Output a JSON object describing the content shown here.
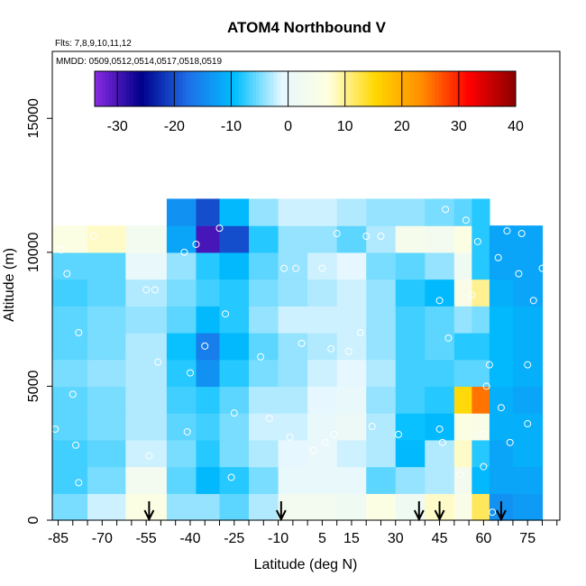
{
  "chart_data": {
    "type": "heatmap",
    "title": "ATOM4 Northbound V",
    "notes": {
      "flights": "Flts: 7,8,9,10,11,12",
      "dates": "MMDD: 0509,0512,0514,0517,0518,0519"
    },
    "xlabel": "Latitude (deg N)",
    "ylabel": "Altitude (m)",
    "xlim": [
      -87,
      86
    ],
    "ylim": [
      0,
      17500
    ],
    "x_ticks": [
      "-85",
      "-70",
      "-55",
      "-40",
      "-25",
      "-10",
      "5",
      "15",
      "30",
      "45",
      "60",
      "75"
    ],
    "y_ticks": [
      "0",
      "5000",
      "10000",
      "15000"
    ],
    "colorbar": {
      "range": [
        -34,
        40
      ],
      "ticks": [
        "-30",
        "-20",
        "-10",
        "0",
        "10",
        "20",
        "30",
        "40"
      ],
      "colors": [
        "#8a2be2",
        "#00008b",
        "#1e6fe8",
        "#00bfff",
        "#e6f7ff",
        "#ffffe0",
        "#ffd700",
        "#ff8c00",
        "#ff0000",
        "#8b0000"
      ]
    },
    "column_edges": [
      -87,
      -75,
      -62,
      -48,
      -38,
      -30,
      -20,
      -10,
      0,
      10,
      20,
      30,
      40,
      50,
      56,
      62,
      70,
      80
    ],
    "row_edges": [
      0,
      1000,
      2000,
      3000,
      4000,
      5000,
      6000,
      7000,
      8000,
      9000,
      10000,
      11000,
      12000
    ],
    "grid_values": [
      [
        -5,
        -2,
        6,
        -4,
        -4,
        -6,
        -3,
        3,
        3,
        2,
        6,
        2,
        8,
        5,
        12,
        -14,
        -13
      ],
      [
        -7,
        -5,
        3,
        -6,
        -10,
        -8,
        -5,
        0,
        0,
        0,
        -6,
        -4,
        -3,
        3,
        -10,
        -12,
        -12
      ],
      [
        -7,
        -6,
        -2,
        -5,
        -8,
        -5,
        -3,
        -1,
        0,
        -2,
        -3,
        -10,
        -3,
        8,
        -8,
        -12,
        -11
      ],
      [
        -6,
        -5,
        -3,
        -6,
        -7,
        -5,
        -2,
        -2,
        0,
        1,
        -3,
        -9,
        -10,
        6,
        5,
        -11,
        -11
      ],
      [
        -6,
        -5,
        -3,
        -7,
        -8,
        -6,
        -3,
        -3,
        -1,
        0,
        -4,
        -7,
        -8,
        15,
        25,
        -11,
        -12
      ],
      [
        -5,
        -4,
        -3,
        -8,
        -14,
        -8,
        -5,
        -4,
        -2,
        -1,
        -3,
        -7,
        -7,
        -6,
        -6,
        -10,
        -11
      ],
      [
        -6,
        -5,
        -3,
        -9,
        -16,
        -10,
        -6,
        -4,
        -3,
        -2,
        -4,
        -7,
        -6,
        -8,
        -8,
        -10,
        -11
      ],
      [
        -6,
        -5,
        -4,
        -6,
        -10,
        -8,
        -4,
        -2,
        -2,
        -2,
        -4,
        -7,
        -6,
        -4,
        -5,
        -10,
        -11
      ],
      [
        -7,
        -6,
        -3,
        -5,
        -7,
        -8,
        -5,
        -4,
        -3,
        -2,
        -4,
        -8,
        -10,
        5,
        10,
        -11,
        -12
      ],
      [
        -6,
        -6,
        0,
        -4,
        -8,
        -10,
        -6,
        -4,
        -2,
        -1,
        -5,
        -6,
        -4,
        2,
        -8,
        -12,
        -12
      ],
      [
        6,
        8,
        3,
        -12,
        -30,
        -20,
        -8,
        -4,
        -4,
        -6,
        -3,
        4,
        3,
        6,
        -8,
        -12,
        -12
      ],
      [
        0,
        0,
        0,
        -14,
        -20,
        -10,
        -4,
        -2,
        -2,
        -3,
        -4,
        -4,
        -5,
        -6,
        -8,
        0,
        0
      ]
    ],
    "flight_tracks": [
      {
        "lat": -86,
        "alt": 3400
      },
      {
        "lat": -84,
        "alt": 10100
      },
      {
        "lat": -82,
        "alt": 9200
      },
      {
        "lat": -80,
        "alt": 4700
      },
      {
        "lat": -79,
        "alt": 2800
      },
      {
        "lat": -78,
        "alt": 1400
      },
      {
        "lat": -78,
        "alt": 7000
      },
      {
        "lat": -73,
        "alt": 10600
      },
      {
        "lat": -55,
        "alt": 8600
      },
      {
        "lat": -52,
        "alt": 8600
      },
      {
        "lat": -51,
        "alt": 5900
      },
      {
        "lat": -54,
        "alt": 2400
      },
      {
        "lat": -42,
        "alt": 10000
      },
      {
        "lat": -41,
        "alt": 3300
      },
      {
        "lat": -40,
        "alt": 5500
      },
      {
        "lat": -38,
        "alt": 10300
      },
      {
        "lat": -35,
        "alt": 6500
      },
      {
        "lat": -30,
        "alt": 10900
      },
      {
        "lat": -28,
        "alt": 7700
      },
      {
        "lat": -25,
        "alt": 4000
      },
      {
        "lat": -26,
        "alt": 1600
      },
      {
        "lat": -16,
        "alt": 6100
      },
      {
        "lat": -13,
        "alt": 3800
      },
      {
        "lat": -8,
        "alt": 9400
      },
      {
        "lat": -4,
        "alt": 9400
      },
      {
        "lat": -6,
        "alt": 3100
      },
      {
        "lat": -2,
        "alt": 6600
      },
      {
        "lat": 2,
        "alt": 2600
      },
      {
        "lat": 5,
        "alt": 9400
      },
      {
        "lat": 6,
        "alt": 2900
      },
      {
        "lat": 8,
        "alt": 6400
      },
      {
        "lat": 9,
        "alt": 3200
      },
      {
        "lat": 10,
        "alt": 10700
      },
      {
        "lat": 14,
        "alt": 6300
      },
      {
        "lat": 18,
        "alt": 7000
      },
      {
        "lat": 20,
        "alt": 10600
      },
      {
        "lat": 22,
        "alt": 3500
      },
      {
        "lat": 25,
        "alt": 10600
      },
      {
        "lat": 31,
        "alt": 3200
      },
      {
        "lat": 45,
        "alt": 3400
      },
      {
        "lat": 45,
        "alt": 8200
      },
      {
        "lat": 46,
        "alt": 2900
      },
      {
        "lat": 47,
        "alt": 11600
      },
      {
        "lat": 48,
        "alt": 6800
      },
      {
        "lat": 52,
        "alt": 1700
      },
      {
        "lat": 54,
        "alt": 11200
      },
      {
        "lat": 56,
        "alt": 8400
      },
      {
        "lat": 58,
        "alt": 10400
      },
      {
        "lat": 60,
        "alt": 2000
      },
      {
        "lat": 60,
        "alt": 3200
      },
      {
        "lat": 61,
        "alt": 5000
      },
      {
        "lat": 62,
        "alt": 5800
      },
      {
        "lat": 63,
        "alt": 300
      },
      {
        "lat": 65,
        "alt": 9800
      },
      {
        "lat": 66,
        "alt": 4200
      },
      {
        "lat": 68,
        "alt": 10800
      },
      {
        "lat": 69,
        "alt": 2900
      },
      {
        "lat": 72,
        "alt": 9200
      },
      {
        "lat": 73,
        "alt": 10700
      },
      {
        "lat": 75,
        "alt": 5800
      },
      {
        "lat": 75,
        "alt": 3600
      },
      {
        "lat": 77,
        "alt": 8200
      },
      {
        "lat": 80,
        "alt": 9400
      },
      {
        "lat": 84,
        "alt": 6300
      }
    ],
    "profile_markers": [
      -54,
      -9,
      38,
      45,
      66
    ],
    "grid": false
  }
}
